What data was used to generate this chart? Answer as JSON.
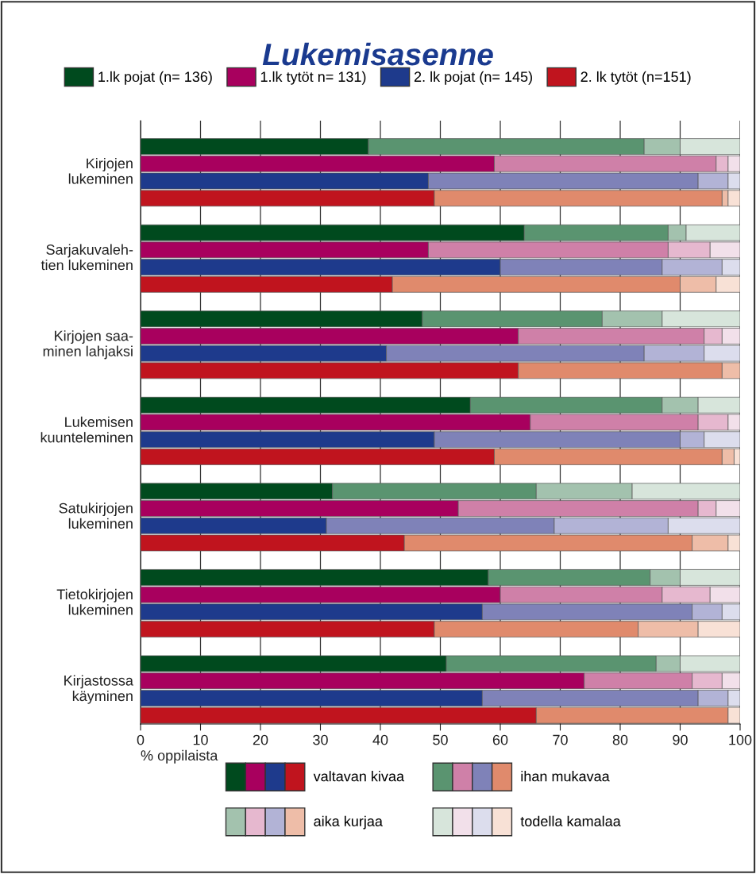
{
  "chart_data": {
    "type": "bar",
    "orientation": "horizontal",
    "stacked": true,
    "title": "Lukemisasenne",
    "xlabel": "% oppilaista",
    "annotations": [
      "Kirjojen\nlukeminen",
      "Sarjakuvaleh-\ntien lukeminen",
      "Kirjojen saa-\nminen lahjaksi",
      "Lukemisen\nkuunteleminen",
      "Satukirjojen\nlukeminen",
      "Tietokirjojen\nlukeminen",
      "Kirjastossa\nkäyminen",
      "1.lk pojat (n= 136)",
      "1.lk tytöt n= 131)",
      "2. lk pojat (n= 145)",
      "2. lk tytöt (n=151)"
    ],
    "categories": [
      null,
      null,
      null,
      null,
      null,
      null,
      null,
      null,
      null,
      null,
      null,
      null,
      null,
      null,
      null,
      null,
      null,
      null,
      null,
      null,
      null,
      null,
      null,
      null,
      null,
      null,
      null,
      null,
      null,
      null,
      null,
      null,
      null,
      null,
      null
    ],
    "xlim": [
      0,
      100
    ],
    "xticks": [
      0,
      10,
      20,
      30,
      40,
      50,
      60,
      70,
      80,
      90,
      100
    ],
    "grid": "x",
    "legend": "bottom",
    "series": [
      {
        "name": "valtavan kivaa",
        "colors": [
          null,
          "#004a1e",
          "#a8005e",
          "#1e3a8c",
          "#c0141e",
          null,
          "#004a1e",
          "#a8005e",
          "#1e3a8c",
          "#c0141e",
          null,
          "#004a1e",
          "#a8005e",
          "#1e3a8c",
          "#c0141e",
          null,
          "#004a1e",
          "#a8005e",
          "#1e3a8c",
          "#c0141e",
          null,
          "#004a1e",
          "#a8005e",
          "#1e3a8c",
          "#c0141e",
          null,
          "#004a1e",
          "#a8005e",
          "#1e3a8c",
          "#c0141e",
          null,
          "#004a1e",
          "#a8005e",
          "#1e3a8c",
          "#c0141e"
        ],
        "values": [
          null,
          38,
          59,
          48,
          49,
          null,
          64,
          48,
          60,
          42,
          null,
          47,
          63,
          41,
          63,
          null,
          55,
          65,
          49,
          59,
          null,
          32,
          53,
          31,
          44,
          null,
          58,
          60,
          57,
          49,
          null,
          51,
          74,
          57,
          66
        ]
      },
      {
        "name": "ihan mukavaa",
        "colors": [
          null,
          "#5a9470",
          "#cf80a8",
          "#7f82b8",
          "#e08a6c",
          null,
          "#5a9470",
          "#cf80a8",
          "#7f82b8",
          "#e08a6c",
          null,
          "#5a9470",
          "#cf80a8",
          "#7f82b8",
          "#e08a6c",
          null,
          "#5a9470",
          "#cf80a8",
          "#7f82b8",
          "#e08a6c",
          null,
          "#5a9470",
          "#cf80a8",
          "#7f82b8",
          "#e08a6c",
          null,
          "#5a9470",
          "#cf80a8",
          "#7f82b8",
          "#e08a6c",
          null,
          "#5a9470",
          "#cf80a8",
          "#7f82b8",
          "#e08a6c"
        ],
        "values": [
          null,
          46,
          37,
          45,
          48,
          null,
          24,
          40,
          27,
          48,
          null,
          30,
          31,
          43,
          34,
          null,
          32,
          28,
          41,
          38,
          null,
          34,
          40,
          38,
          48,
          null,
          27,
          27,
          35,
          34,
          null,
          35,
          18,
          36,
          32
        ]
      },
      {
        "name": "aika kurjaa",
        "colors": [
          null,
          "#a3c2ae",
          "#e6b8cf",
          "#b2b3d6",
          "#eebda8",
          null,
          "#a3c2ae",
          "#e6b8cf",
          "#b2b3d6",
          "#eebda8",
          null,
          "#a3c2ae",
          "#e6b8cf",
          "#b2b3d6",
          "#eebda8",
          null,
          "#a3c2ae",
          "#e6b8cf",
          "#b2b3d6",
          "#eebda8",
          null,
          "#a3c2ae",
          "#e6b8cf",
          "#b2b3d6",
          "#eebda8",
          null,
          "#a3c2ae",
          "#e6b8cf",
          "#b2b3d6",
          "#eebda8",
          null,
          "#a3c2ae",
          "#e6b8cf",
          "#b2b3d6",
          "#eebda8"
        ],
        "values": [
          null,
          6,
          2,
          5,
          1,
          null,
          3,
          7,
          10,
          6,
          null,
          10,
          3,
          10,
          3,
          null,
          6,
          5,
          4,
          2,
          null,
          16,
          3,
          19,
          6,
          null,
          5,
          8,
          5,
          10,
          null,
          4,
          5,
          5,
          0
        ]
      },
      {
        "name": "todella kamalaa",
        "colors": [
          null,
          "#d7e5db",
          "#f2e0ea",
          "#dcdded",
          "#f8e1d6",
          null,
          "#d7e5db",
          "#f2e0ea",
          "#dcdded",
          "#f8e1d6",
          null,
          "#d7e5db",
          "#f2e0ea",
          "#dcdded",
          "#f8e1d6",
          null,
          "#d7e5db",
          "#f2e0ea",
          "#dcdded",
          "#f8e1d6",
          null,
          "#d7e5db",
          "#f2e0ea",
          "#dcdded",
          "#f8e1d6",
          null,
          "#d7e5db",
          "#f2e0ea",
          "#dcdded",
          "#f8e1d6",
          null,
          "#d7e5db",
          "#f2e0ea",
          "#dcdded",
          "#f8e1d6"
        ],
        "values": [
          null,
          10,
          2,
          2,
          2,
          null,
          9,
          5,
          3,
          4,
          null,
          13,
          3,
          6,
          0,
          null,
          7,
          2,
          6,
          1,
          null,
          18,
          4,
          12,
          2,
          null,
          10,
          5,
          3,
          7,
          null,
          10,
          3,
          2,
          2
        ]
      }
    ]
  }
}
